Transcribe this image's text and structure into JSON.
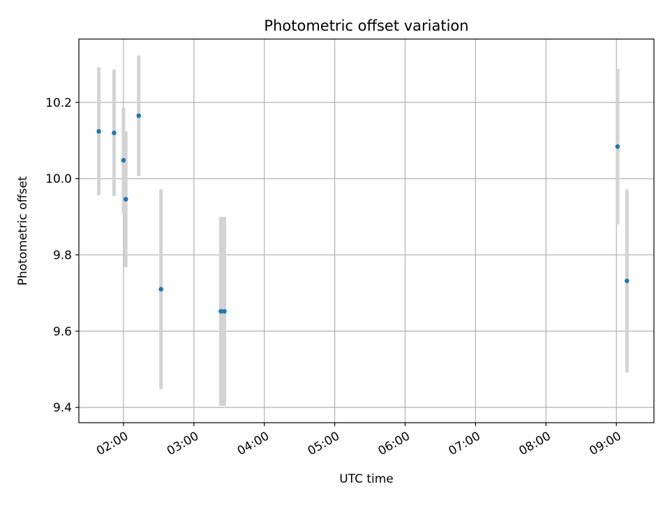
{
  "chart_data": {
    "type": "scatter",
    "title": "Photometric offset variation",
    "xlabel": "UTC time",
    "ylabel": "Photometric offset",
    "x_ticks": [
      "02:00",
      "03:00",
      "04:00",
      "05:00",
      "06:00",
      "07:00",
      "08:00",
      "09:00"
    ],
    "y_ticks": [
      "9.4",
      "9.6",
      "9.8",
      "10.0",
      "10.2"
    ],
    "xlim": [
      "01:22",
      "09:32"
    ],
    "ylim": [
      9.36,
      10.366
    ],
    "grid": true,
    "marker_color": "#1f77b4",
    "errorbar_color": "#d3d3d3",
    "points": [
      {
        "x": "01:39",
        "y": 10.124,
        "err": 0.168
      },
      {
        "x": "01:52",
        "y": 10.12,
        "err": 0.166
      },
      {
        "x": "02:00",
        "y": 10.048,
        "err": 0.138
      },
      {
        "x": "02:02",
        "y": 9.946,
        "err": 0.178
      },
      {
        "x": "02:13",
        "y": 10.165,
        "err": 0.158
      },
      {
        "x": "02:32",
        "y": 9.71,
        "err": 0.262
      },
      {
        "x": "03:23",
        "y": 9.652,
        "err": 0.248
      },
      {
        "x": "03:26",
        "y": 9.652,
        "err": 0.248
      },
      {
        "x": "09:01",
        "y": 10.084,
        "err": 0.204
      },
      {
        "x": "09:09",
        "y": 9.732,
        "err": 0.24
      }
    ]
  }
}
